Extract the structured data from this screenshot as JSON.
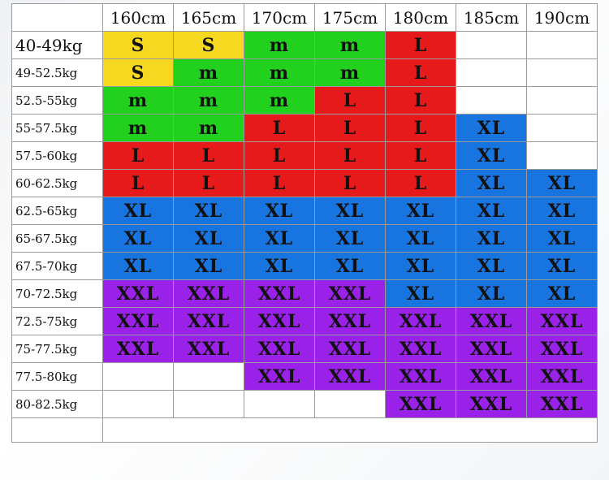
{
  "heights": [
    "160cm",
    "165cm",
    "170cm",
    "175cm",
    "180cm",
    "185cm",
    "190cm"
  ],
  "colors": {
    "S": "#f6d820",
    "M": "#22d11e",
    "L": "#e61a1a",
    "XL": "#1875e0",
    "XXL": "#9a22e8"
  },
  "rows": [
    {
      "weight": "40-49kg",
      "sizes": [
        "S",
        "S",
        "m",
        "m",
        "L",
        "",
        ""
      ]
    },
    {
      "weight": "49-52.5kg",
      "sizes": [
        "S",
        "m",
        "m",
        "m",
        "L",
        "",
        ""
      ]
    },
    {
      "weight": "52.5-55kg",
      "sizes": [
        "m",
        "m",
        "m",
        "L",
        "L",
        "",
        ""
      ]
    },
    {
      "weight": "55-57.5kg",
      "sizes": [
        "m",
        "m",
        "L",
        "L",
        "L",
        "XL",
        ""
      ]
    },
    {
      "weight": "57.5-60kg",
      "sizes": [
        "L",
        "L",
        "L",
        "L",
        "L",
        "XL",
        ""
      ]
    },
    {
      "weight": "60-62.5kg",
      "sizes": [
        "L",
        "L",
        "L",
        "L",
        "L",
        "XL",
        "XL"
      ]
    },
    {
      "weight": "62.5-65kg",
      "sizes": [
        "XL",
        "XL",
        "XL",
        "XL",
        "XL",
        "XL",
        "XL"
      ]
    },
    {
      "weight": "65-67.5kg",
      "sizes": [
        "XL",
        "XL",
        "XL",
        "XL",
        "XL",
        "XL",
        "XL"
      ]
    },
    {
      "weight": "67.5-70kg",
      "sizes": [
        "XL",
        "XL",
        "XL",
        "XL",
        "XL",
        "XL",
        "XL"
      ]
    },
    {
      "weight": "70-72.5kg",
      "sizes": [
        "XXL",
        "XXL",
        "XXL",
        "XXL",
        "XL",
        "XL",
        "XL"
      ]
    },
    {
      "weight": "72.5-75kg",
      "sizes": [
        "XXL",
        "XXL",
        "XXL",
        "XXL",
        "XXL",
        "XXL",
        "XXL"
      ]
    },
    {
      "weight": "75-77.5kg",
      "sizes": [
        "XXL",
        "XXL",
        "XXL",
        "XXL",
        "XXL",
        "XXL",
        "XXL"
      ]
    },
    {
      "weight": "77.5-80kg",
      "sizes": [
        "",
        "",
        "XXL",
        "XXL",
        "XXL",
        "XXL",
        "XXL"
      ]
    },
    {
      "weight": "80-82.5kg",
      "sizes": [
        "",
        "",
        "",
        "",
        "XXL",
        "XXL",
        "XXL"
      ]
    }
  ]
}
